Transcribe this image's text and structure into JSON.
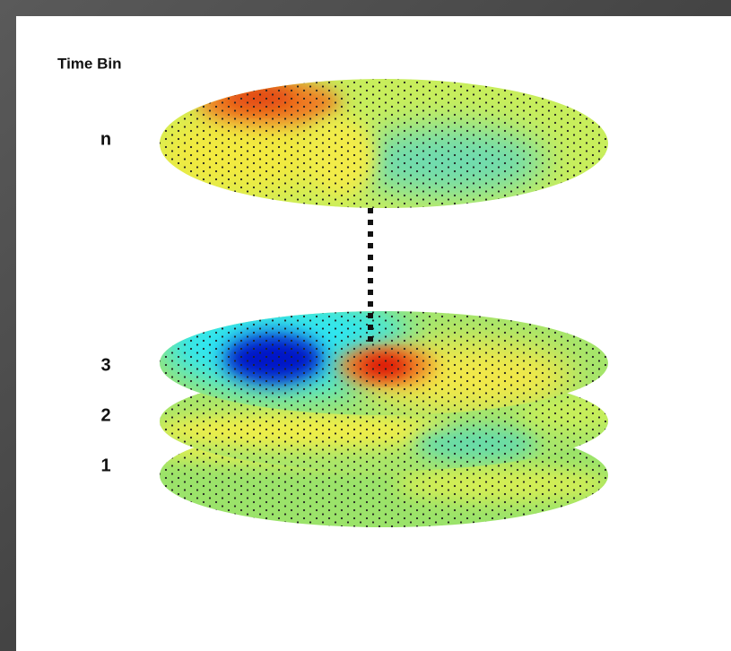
{
  "header": {
    "title": "Time Bin"
  },
  "layers": [
    {
      "label": "n"
    },
    {
      "label": "3"
    },
    {
      "label": "2"
    },
    {
      "label": "1"
    }
  ]
}
